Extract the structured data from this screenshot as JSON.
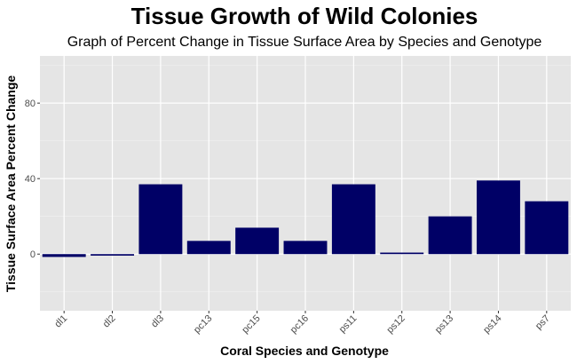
{
  "chart_data": {
    "type": "bar",
    "title": "Tissue Growth of Wild Colonies",
    "subtitle": "Graph of Percent Change in Tissue Surface Area by Species and Genotype",
    "xlabel": "Coral Species and Genotype",
    "ylabel": "Tissue Surface Area Percent Change",
    "categories": [
      "dl1",
      "dl2",
      "dl3",
      "pc13",
      "pc15",
      "pc16",
      "ps11",
      "ps12",
      "ps13",
      "ps14",
      "ps7"
    ],
    "values": [
      -1.5,
      -0.8,
      37,
      7,
      14,
      7,
      37,
      0.8,
      20,
      39,
      28
    ],
    "ylim": [
      -30,
      105
    ],
    "yticks": [
      0,
      40,
      80
    ],
    "bar_color": "#000066",
    "panel_color": "#e5e5e5",
    "grid": true,
    "legend": "none"
  }
}
